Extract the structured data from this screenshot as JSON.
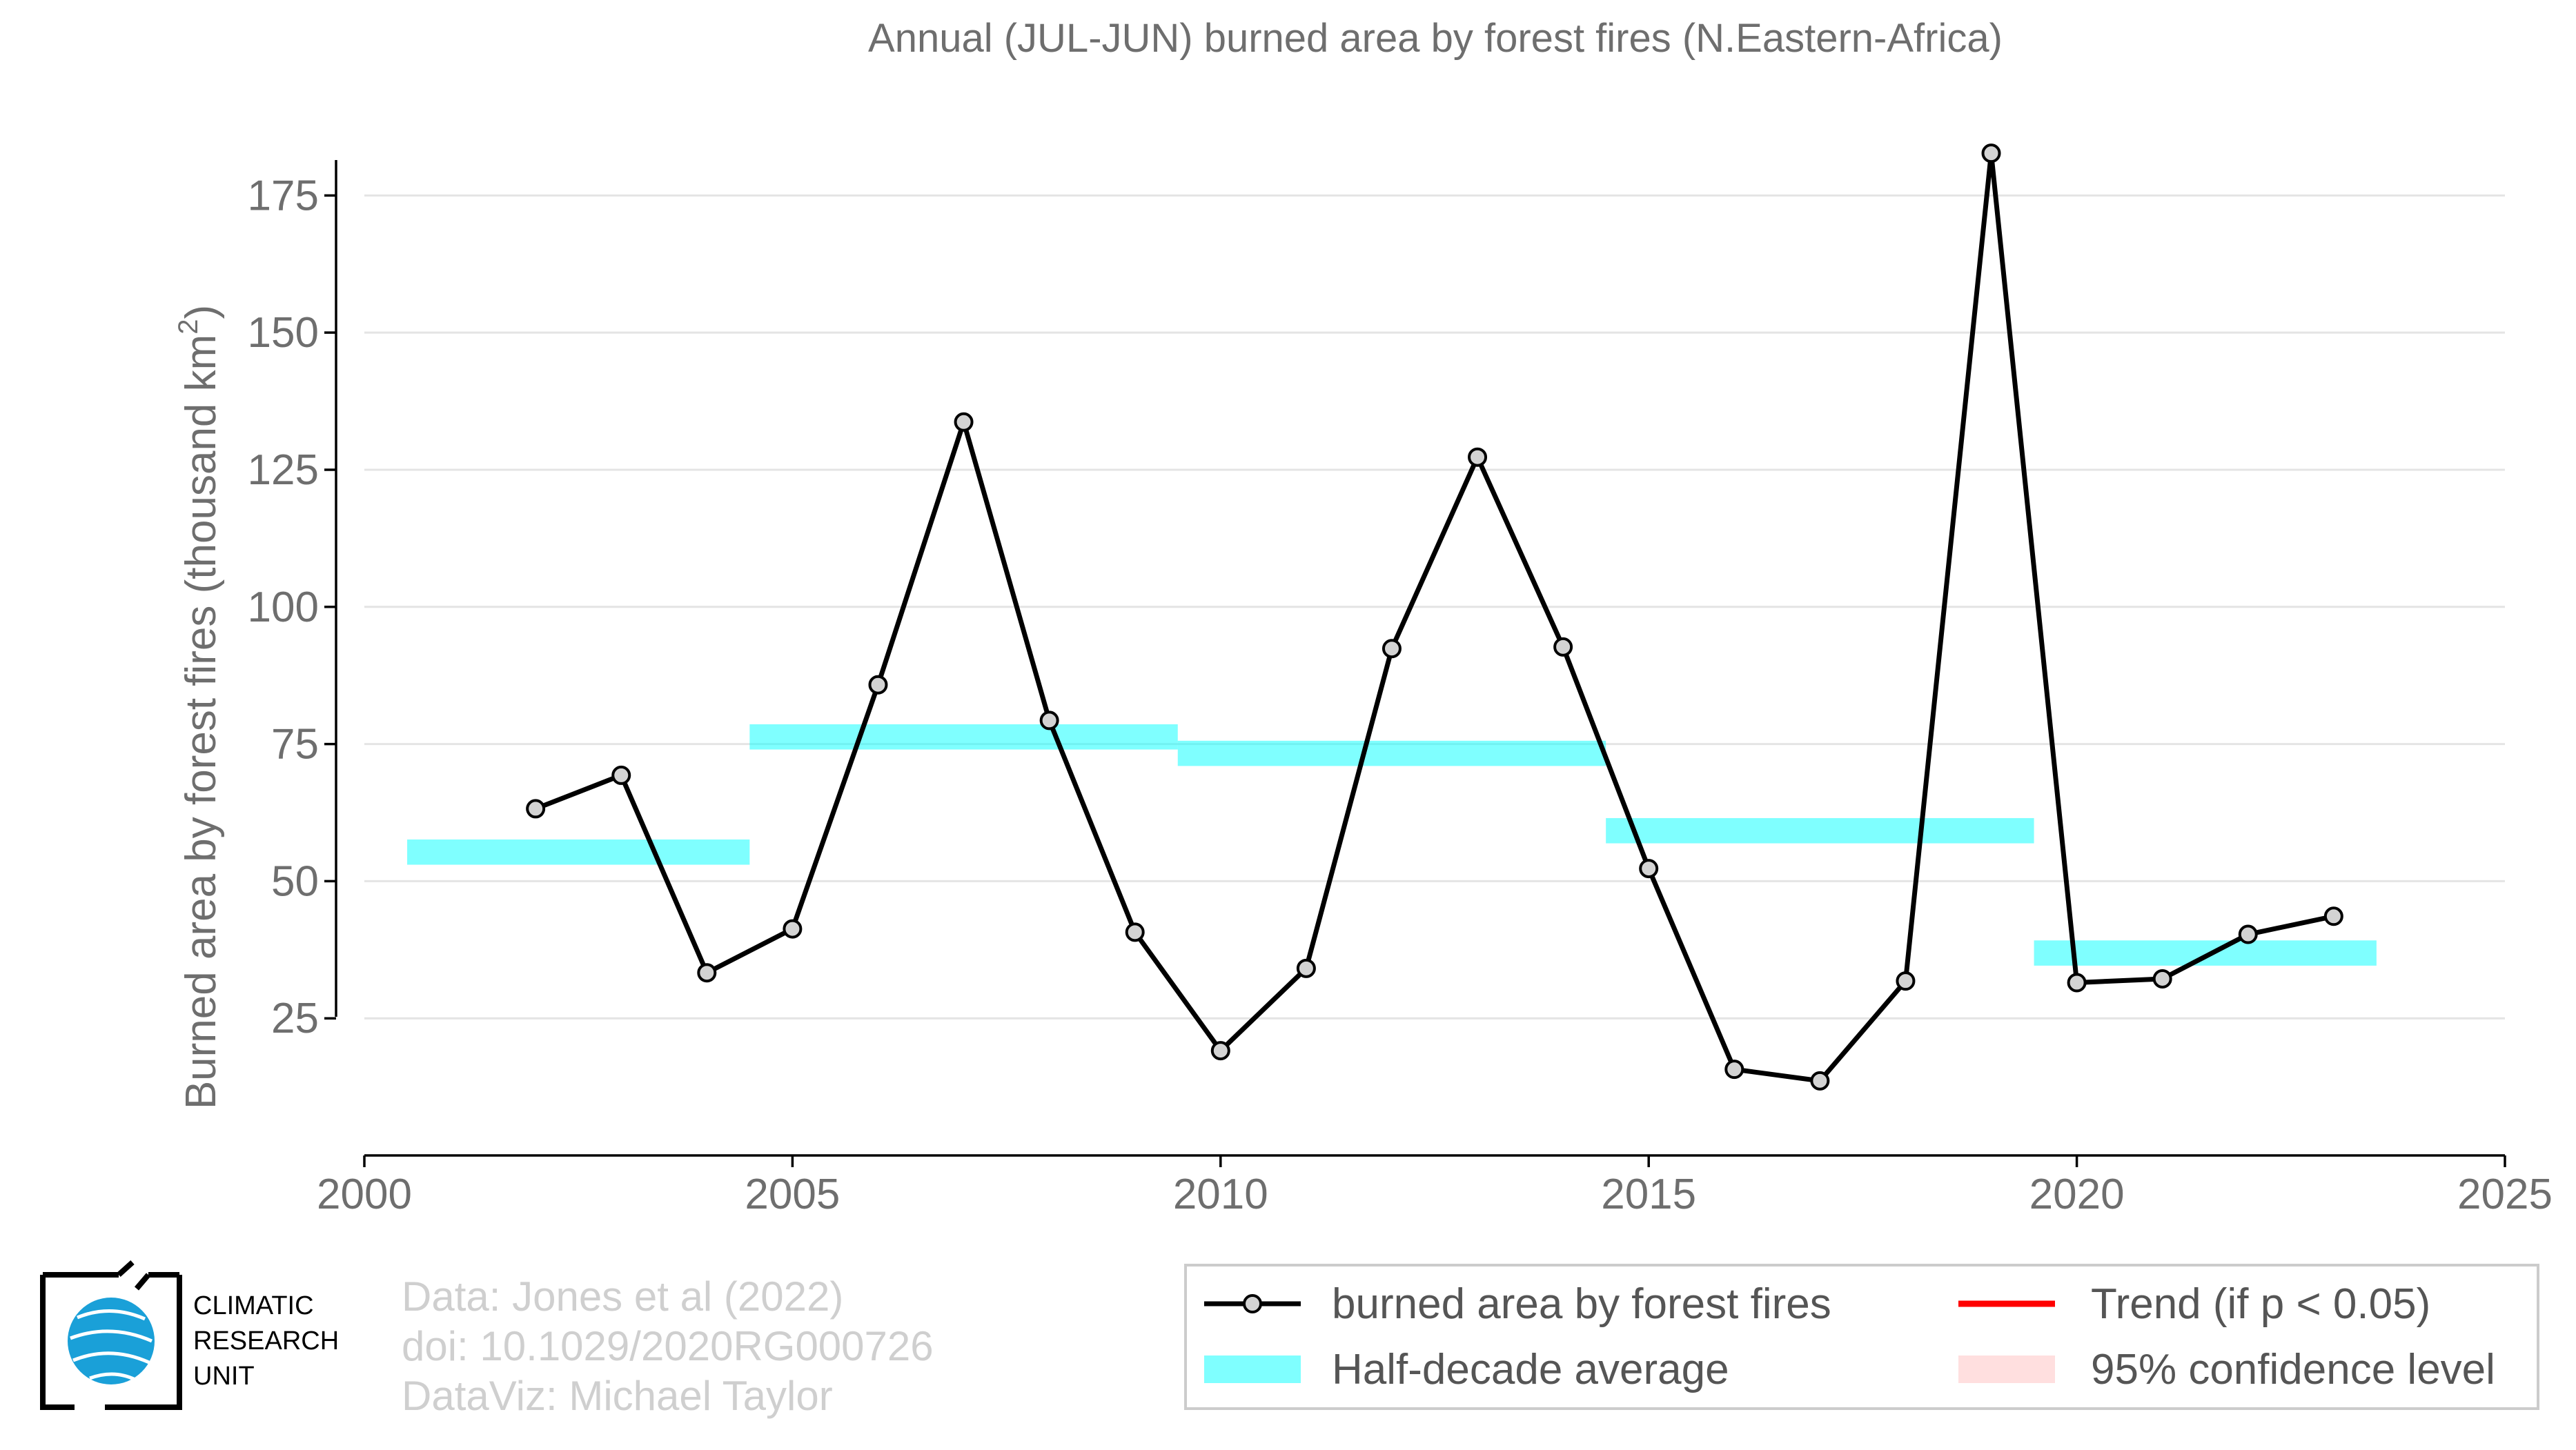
{
  "chart_data": {
    "type": "line",
    "title": "Annual (JUL-JUN) burned area by forest fires (N.Eastern-Africa)",
    "ylabel_main": "Burned area by forest fires (thousand km",
    "ylabel_sup": "2",
    "ylabel_end": ")",
    "xlim": [
      2000,
      2025
    ],
    "ylim": [
      0,
      188
    ],
    "x_ticks": [
      2000,
      2005,
      2010,
      2015,
      2020,
      2025
    ],
    "y_ticks": [
      25,
      50,
      75,
      100,
      125,
      150,
      175
    ],
    "grid": true,
    "series": [
      {
        "name": "burned area by forest fires",
        "x": [
          2002,
          2003,
          2004,
          2005,
          2006,
          2007,
          2008,
          2009,
          2010,
          2011,
          2012,
          2013,
          2014,
          2015,
          2016,
          2017,
          2018,
          2019,
          2020,
          2021,
          2022,
          2023
        ],
        "values": [
          63.2,
          69.3,
          33.3,
          41.3,
          85.8,
          133.7,
          79.3,
          40.7,
          19.1,
          34.1,
          92.4,
          127.3,
          92.7,
          52.3,
          15.7,
          13.6,
          31.8,
          182.7,
          31.5,
          32.2,
          40.3,
          43.6
        ]
      }
    ],
    "half_decade_average": {
      "name": "Half-decade average",
      "segments": [
        {
          "x_start": 2000.5,
          "x_end": 2004.5,
          "value": 55.3
        },
        {
          "x_start": 2004.5,
          "x_end": 2009.5,
          "value": 76.3
        },
        {
          "x_start": 2009.5,
          "x_end": 2014.5,
          "value": 73.3
        },
        {
          "x_start": 2014.5,
          "x_end": 2019.5,
          "value": 59.2
        },
        {
          "x_start": 2019.5,
          "x_end": 2023.5,
          "value": 36.9
        }
      ]
    },
    "legend": {
      "placement": "bottom-right",
      "entries": [
        {
          "label": "burned area by forest fires",
          "kind": "line-marker"
        },
        {
          "label": "Trend (if p < 0.05)",
          "kind": "line",
          "color": "#ff0000"
        },
        {
          "label": "Half-decade average",
          "kind": "band",
          "color": "#00ffff"
        },
        {
          "label": "95% confidence level",
          "kind": "band",
          "color": "#ffc0c0"
        }
      ]
    }
  },
  "credits": {
    "line1": "Data: Jones et al (2022)",
    "line2": "doi: 10.1029/2020RG000726",
    "line3": "DataViz: Michael Taylor"
  },
  "logo": {
    "line1": "CLIMATIC",
    "line2": "RESEARCH",
    "line3": "UNIT"
  }
}
